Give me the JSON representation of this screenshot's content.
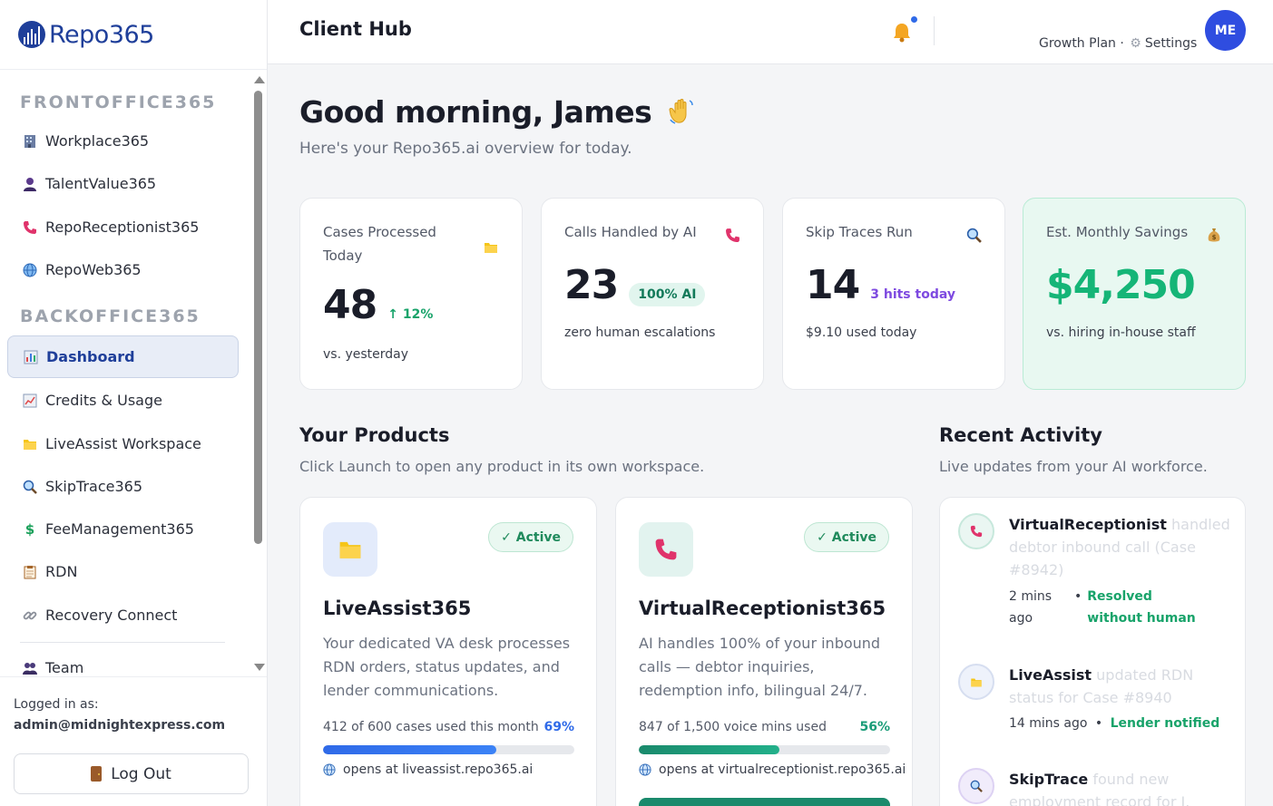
{
  "brand": {
    "name": "Repo365"
  },
  "topbar": {
    "title": "Client Hub",
    "plan": "Growth Plan ·",
    "settings_label": "Settings",
    "avatar_initials": "ME"
  },
  "sidebar": {
    "sections": [
      {
        "title": "FRONTOFFICE365"
      },
      {
        "title": "BACKOFFICE365"
      }
    ],
    "items": [
      {
        "label": "Workplace365",
        "icon": "building-icon"
      },
      {
        "label": "TalentValue365",
        "icon": "person-icon"
      },
      {
        "label": "RepoReceptionist365",
        "icon": "phone-icon"
      },
      {
        "label": "RepoWeb365",
        "icon": "globe-icon"
      },
      {
        "label": "Dashboard",
        "icon": "bar-chart-icon",
        "active": true
      },
      {
        "label": "Credits & Usage",
        "icon": "line-chart-icon"
      },
      {
        "label": "LiveAssist Workspace",
        "icon": "folder-icon"
      },
      {
        "label": "SkipTrace365",
        "icon": "magnifier-icon"
      },
      {
        "label": "FeeManagement365",
        "icon": "dollar-icon"
      },
      {
        "label": "RDN",
        "icon": "clipboard-icon"
      },
      {
        "label": "Recovery Connect",
        "icon": "link-icon"
      },
      {
        "label": "Team",
        "icon": "team-icon"
      }
    ],
    "footer": {
      "logged_label": "Logged in as:",
      "email": "admin@midnightexpress.com",
      "logout_label": "Log Out"
    }
  },
  "main": {
    "greeting": "Good morning, James",
    "subtitle": "Here's your Repo365.ai overview for today.",
    "stats": [
      {
        "label": "Cases Processed Today",
        "value": "48",
        "trend": "12%",
        "sub": "vs. yesterday",
        "icon": "folder-icon"
      },
      {
        "label": "Calls Handled by AI",
        "value": "23",
        "badge": "100% AI",
        "sub": "zero human escalations",
        "icon": "phone-icon"
      },
      {
        "label": "Skip Traces Run",
        "value": "14",
        "extra": "3 hits today",
        "sub": "$9.10 used today",
        "icon": "magnifier-icon"
      },
      {
        "label": "Est. Monthly Savings",
        "value": "$4,250",
        "sub": "vs. hiring in-house staff",
        "icon": "money-bag-icon"
      }
    ],
    "products_section": {
      "title": "Your Products",
      "subtitle": "Click Launch to open any product in its own workspace."
    },
    "products": [
      {
        "name": "LiveAssist365",
        "status": "✓ Active",
        "description": "Your dedicated VA desk processes RDN orders, status updates, and lender communications.",
        "usage_text": "412 of 600 cases used this month",
        "usage_pct": "69%",
        "usage_fraction": 0.69,
        "url_text": "opens at liveassist.repo365.ai",
        "accent": "#2f6ae8"
      },
      {
        "name": "VirtualReceptionist365",
        "status": "✓ Active",
        "description": "AI handles 100% of your inbound calls — debtor inquiries, redemption info, bilingual 24/7.",
        "usage_text": "847 of 1,500 voice mins used",
        "usage_pct": "56%",
        "usage_fraction": 0.56,
        "url_text": "opens at virtualreceptionist.repo365.ai",
        "accent": "#1a9c78"
      }
    ],
    "activity_section": {
      "title": "Recent Activity",
      "subtitle": "Live updates from your AI workforce."
    },
    "activity": [
      {
        "actor": "VirtualReceptionist",
        "text": "handled debtor inbound call (Case #8942)",
        "time": "2 mins ago",
        "status": "Resolved without human"
      },
      {
        "actor": "LiveAssist",
        "text": "updated RDN status for Case #8940",
        "time": "14 mins ago",
        "status": "Lender notified"
      },
      {
        "actor": "SkipTrace",
        "text": "found new employment record for J."
      }
    ]
  }
}
